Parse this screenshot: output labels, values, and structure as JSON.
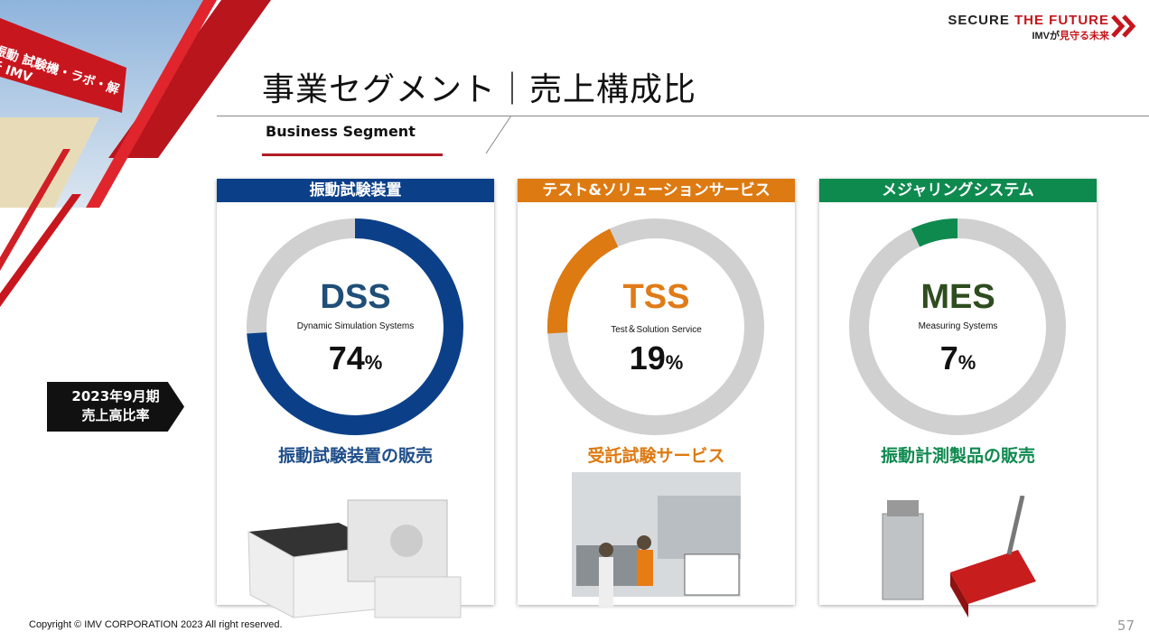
{
  "header": {
    "title": "事業セグメント｜売上構成比",
    "subtitle": "Business Segment",
    "tagline": {
      "secure": "SECURE",
      "the_future": "THE FUTURE",
      "imv_ga": "IMVが",
      "mimamoru": "見守る未来"
    },
    "banner_sign": "振動 試験機・ラボ・解析 IMV"
  },
  "period_label": {
    "line1": "2023年9月期",
    "line2": "売上高比率"
  },
  "chart_data": {
    "type": "pie",
    "style": "donut",
    "ring_color": "#d0d0d0",
    "segments": [
      {
        "header": "振動試験装置",
        "abbr": "DSS",
        "name": "Dynamic Simulation Systems",
        "value": 74,
        "label": "74",
        "unit": "%",
        "start": 0,
        "color": "#0b4089",
        "description": "振動試験装置の販売"
      },
      {
        "header": "テスト&ソリューションサービス",
        "abbr": "TSS",
        "name": "Test＆Solution Service",
        "value": 19,
        "label": "19",
        "unit": "%",
        "start": 74,
        "color": "#dd7a12",
        "description": "受託試験サービス"
      },
      {
        "header": "メジャリングシステム",
        "abbr": "MES",
        "name": "Measuring Systems",
        "value": 7,
        "label": "7",
        "unit": "%",
        "start": 93,
        "color": "#0e8a4f",
        "description": "振動計測製品の販売"
      }
    ]
  },
  "abbr_colors": [
    "#1f4e79",
    "#e07b17",
    "#2e4d1f"
  ],
  "footer": {
    "copyright": "Copyright © IMV CORPORATION 2023 All right reserved.",
    "page": "57"
  }
}
